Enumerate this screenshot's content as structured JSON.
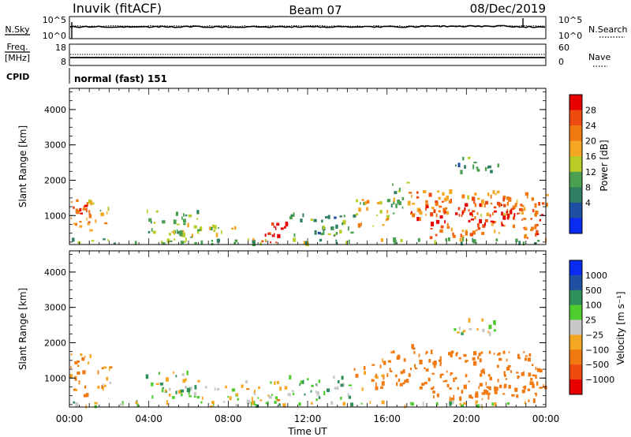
{
  "header": {
    "station": "Inuvik (fitACF)",
    "beam": "Beam 07",
    "date": "08/Dec/2019"
  },
  "noise_panel": {
    "left_label": "N.Sky",
    "left_ticks": [
      "10^5",
      "10^0"
    ],
    "right_label": "N.Search",
    "right_ticks": [
      "10^5",
      "10^0"
    ]
  },
  "freq_panel": {
    "left_label_line1": "Freq.",
    "left_label_line2": "[MHz]",
    "left_ticks": [
      "18",
      "8"
    ],
    "right_label": "Nave",
    "right_ticks": [
      "60",
      "0"
    ]
  },
  "cpid": {
    "label": "CPID",
    "value": "normal (fast) 151"
  },
  "axes": {
    "ylabel": "Slant Range [km]",
    "xlabel": "Time UT",
    "yticks": [
      "4000",
      "3000",
      "2000",
      "1000"
    ],
    "xticks": [
      "00:00",
      "04:00",
      "08:00",
      "12:00",
      "16:00",
      "20:00",
      "00:00"
    ]
  },
  "colors": {
    "power_scale": [
      "#0a2cf0",
      "#1d4fa3",
      "#2f7f62",
      "#4aa04f",
      "#b9cc26",
      "#f5a623",
      "#f07a10",
      "#ef4a10",
      "#e80000"
    ],
    "velocity_scale": [
      "#e80000",
      "#ef4a10",
      "#f07a10",
      "#f5a623",
      "#c8c8c8",
      "#4fcc30",
      "#2f8f5a",
      "#1d4fa3",
      "#0a2cf0"
    ]
  },
  "chart_data": [
    {
      "type": "heatmap",
      "name": "power",
      "x_range_hours": [
        0,
        24
      ],
      "y_range_km": [
        180,
        4600
      ],
      "colorbar_label": "Power [dB]",
      "colorbar_ticks": [
        "28",
        "24",
        "20",
        "16",
        "12",
        "8",
        "4"
      ],
      "colorbar_range": [
        0,
        32
      ],
      "regions": [
        {
          "t0": 0.0,
          "t1": 1.1,
          "r0": 500,
          "r1": 1600,
          "level": 22
        },
        {
          "t0": 0.3,
          "t1": 1.0,
          "r0": 950,
          "r1": 1300,
          "level": 28
        },
        {
          "t0": 1.1,
          "t1": 2.1,
          "r0": 700,
          "r1": 1350,
          "level": 18
        },
        {
          "t0": 3.8,
          "t1": 6.6,
          "r0": 450,
          "r1": 1150,
          "level": 13
        },
        {
          "t0": 5.0,
          "t1": 8.6,
          "r0": 380,
          "r1": 750,
          "level": 16
        },
        {
          "t0": 9.4,
          "t1": 11.0,
          "r0": 200,
          "r1": 900,
          "level": 30
        },
        {
          "t0": 11.0,
          "t1": 14.3,
          "r0": 380,
          "r1": 1050,
          "level": 11
        },
        {
          "t0": 14.3,
          "t1": 16.0,
          "r0": 650,
          "r1": 1450,
          "level": 18
        },
        {
          "t0": 16.0,
          "t1": 17.0,
          "r0": 900,
          "r1": 2000,
          "level": 14
        },
        {
          "t0": 17.0,
          "t1": 24.0,
          "r0": 1000,
          "r1": 1700,
          "level": 22
        },
        {
          "t0": 17.2,
          "t1": 23.8,
          "r0": 700,
          "r1": 1400,
          "level": 27
        },
        {
          "t0": 18.0,
          "t1": 23.5,
          "r0": 350,
          "r1": 750,
          "level": 24
        },
        {
          "t0": 19.2,
          "t1": 21.6,
          "r0": 2200,
          "r1": 2650,
          "level": 10
        },
        {
          "t0": 0.0,
          "t1": 24.0,
          "r0": 190,
          "r1": 330,
          "level": 14
        }
      ]
    },
    {
      "type": "heatmap",
      "name": "velocity",
      "x_range_hours": [
        0,
        24
      ],
      "y_range_km": [
        180,
        4600
      ],
      "colorbar_label": "Velocity [m s⁻¹]",
      "colorbar_ticks": [
        "1000",
        "500",
        "100",
        "25",
        "−25",
        "−100",
        "−500",
        "−1000"
      ],
      "regions": [
        {
          "t0": 0.0,
          "t1": 1.1,
          "r0": 500,
          "r1": 1700,
          "velocity": -150
        },
        {
          "t0": 1.1,
          "t1": 2.1,
          "r0": 700,
          "r1": 1350,
          "velocity": -100
        },
        {
          "t0": 3.8,
          "t1": 6.6,
          "r0": 450,
          "r1": 1150,
          "velocity": 60
        },
        {
          "t0": 5.0,
          "t1": 8.6,
          "r0": 380,
          "r1": 750,
          "velocity": 40
        },
        {
          "t0": 8.6,
          "t1": 11.0,
          "r0": 200,
          "r1": 900,
          "velocity": 0
        },
        {
          "t0": 11.0,
          "t1": 14.3,
          "r0": 380,
          "r1": 1050,
          "velocity": 80
        },
        {
          "t0": 14.3,
          "t1": 16.0,
          "r0": 650,
          "r1": 1500,
          "velocity": -150
        },
        {
          "t0": 16.0,
          "t1": 17.3,
          "r0": 800,
          "r1": 1900,
          "velocity": -300
        },
        {
          "t0": 17.3,
          "t1": 24.0,
          "r0": 700,
          "r1": 1750,
          "velocity": -300
        },
        {
          "t0": 18.0,
          "t1": 23.5,
          "r0": 350,
          "r1": 750,
          "velocity": -300
        },
        {
          "t0": 19.2,
          "t1": 21.6,
          "r0": 2200,
          "r1": 2650,
          "velocity": 0
        },
        {
          "t0": 0.0,
          "t1": 24.0,
          "r0": 190,
          "r1": 330,
          "velocity": 10
        }
      ]
    }
  ]
}
